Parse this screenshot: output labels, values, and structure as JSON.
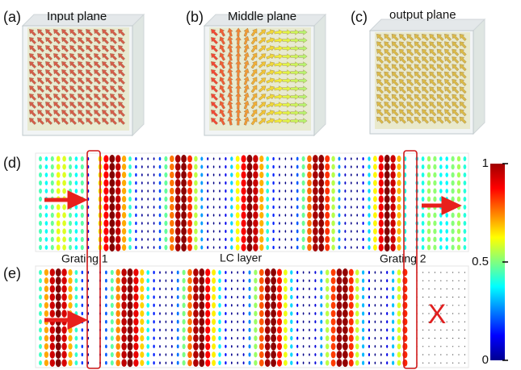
{
  "panels": [
    {
      "label": "(a)",
      "title": "Input plane"
    },
    {
      "label": "(b)",
      "title": "Middle plane"
    },
    {
      "label": "(c)",
      "title": "output plane"
    }
  ],
  "field_panels": [
    {
      "label": "(d)"
    },
    {
      "label": "(e)"
    }
  ],
  "annotations": {
    "grating_1": "Grating 1",
    "lc_layer": "LC layer",
    "grating_2": "Grating 2",
    "blocked": "X"
  },
  "colorbar": {
    "ylim": [
      0,
      1
    ],
    "yticks": [
      0,
      0.5,
      1
    ]
  }
}
